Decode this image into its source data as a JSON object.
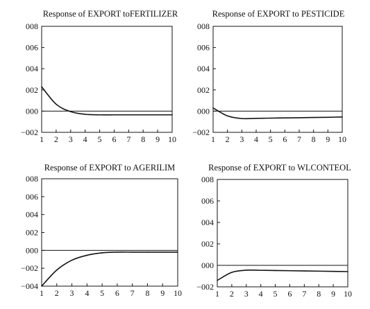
{
  "chart_data": [
    {
      "type": "line",
      "title": "Response of EXPORT toFERTILIZER",
      "x": [
        1,
        2,
        3,
        4,
        5,
        6,
        7,
        8,
        9,
        10
      ],
      "x_tick_labels": [
        "1",
        "2",
        "3",
        "4",
        "5",
        "6",
        "7",
        "8",
        "9",
        "10"
      ],
      "y_tick_labels": [
        "008",
        "006",
        "004",
        "002",
        "000",
        "−002"
      ],
      "y_tick_values": [
        8,
        6,
        4,
        2,
        0,
        -2
      ],
      "ylim": [
        -2,
        8
      ],
      "zero_line": true,
      "series": [
        {
          "values": [
            2.3,
            0.65,
            -0.05,
            -0.3,
            -0.35,
            -0.35,
            -0.35,
            -0.35,
            -0.35,
            -0.35
          ]
        }
      ]
    },
    {
      "type": "line",
      "title": "Response of EXPORT to PESTICIDE",
      "x": [
        1,
        2,
        3,
        4,
        5,
        6,
        7,
        8,
        9,
        10
      ],
      "x_tick_labels": [
        "1",
        "2",
        "3",
        "4",
        "5",
        "6",
        "7",
        "8",
        "9",
        "10"
      ],
      "y_tick_labels": [
        "008",
        "006",
        "004",
        "002",
        "000",
        "−002"
      ],
      "y_tick_values": [
        8,
        6,
        4,
        2,
        0,
        -2
      ],
      "ylim": [
        -2,
        8
      ],
      "zero_line": true,
      "series": [
        {
          "values": [
            0.3,
            -0.45,
            -0.7,
            -0.68,
            -0.66,
            -0.64,
            -0.62,
            -0.6,
            -0.58,
            -0.55
          ]
        }
      ]
    },
    {
      "type": "line",
      "title": "Response of EXPORT to AGERILIM",
      "x": [
        1,
        2,
        3,
        4,
        5,
        6,
        7,
        8,
        9,
        10
      ],
      "x_tick_labels": [
        "1",
        "2",
        "3",
        "4",
        "5",
        "6",
        "7",
        "8",
        "9",
        "10"
      ],
      "y_tick_labels": [
        "008",
        "006",
        "004",
        "002",
        "000",
        "−002",
        "−004"
      ],
      "y_tick_values": [
        8,
        6,
        4,
        2,
        0,
        -2,
        -4
      ],
      "ylim": [
        -4,
        8
      ],
      "zero_line": true,
      "series": [
        {
          "values": [
            -4.0,
            -2.2,
            -1.1,
            -0.55,
            -0.28,
            -0.2,
            -0.2,
            -0.2,
            -0.2,
            -0.2
          ]
        }
      ]
    },
    {
      "type": "line",
      "title": "Response of EXPORT to WLCONTEOL",
      "x": [
        1,
        2,
        3,
        4,
        5,
        6,
        7,
        8,
        9,
        10
      ],
      "x_tick_labels": [
        "1",
        "2",
        "3",
        "4",
        "5",
        "6",
        "7",
        "8",
        "9",
        "10"
      ],
      "y_tick_labels": [
        "008",
        "006",
        "004",
        "002",
        "000",
        "−002"
      ],
      "y_tick_values": [
        8,
        6,
        4,
        2,
        0,
        -2
      ],
      "ylim": [
        -2,
        8
      ],
      "zero_line": true,
      "series": [
        {
          "values": [
            -1.4,
            -0.65,
            -0.45,
            -0.46,
            -0.48,
            -0.5,
            -0.52,
            -0.54,
            -0.56,
            -0.58
          ]
        }
      ]
    }
  ]
}
